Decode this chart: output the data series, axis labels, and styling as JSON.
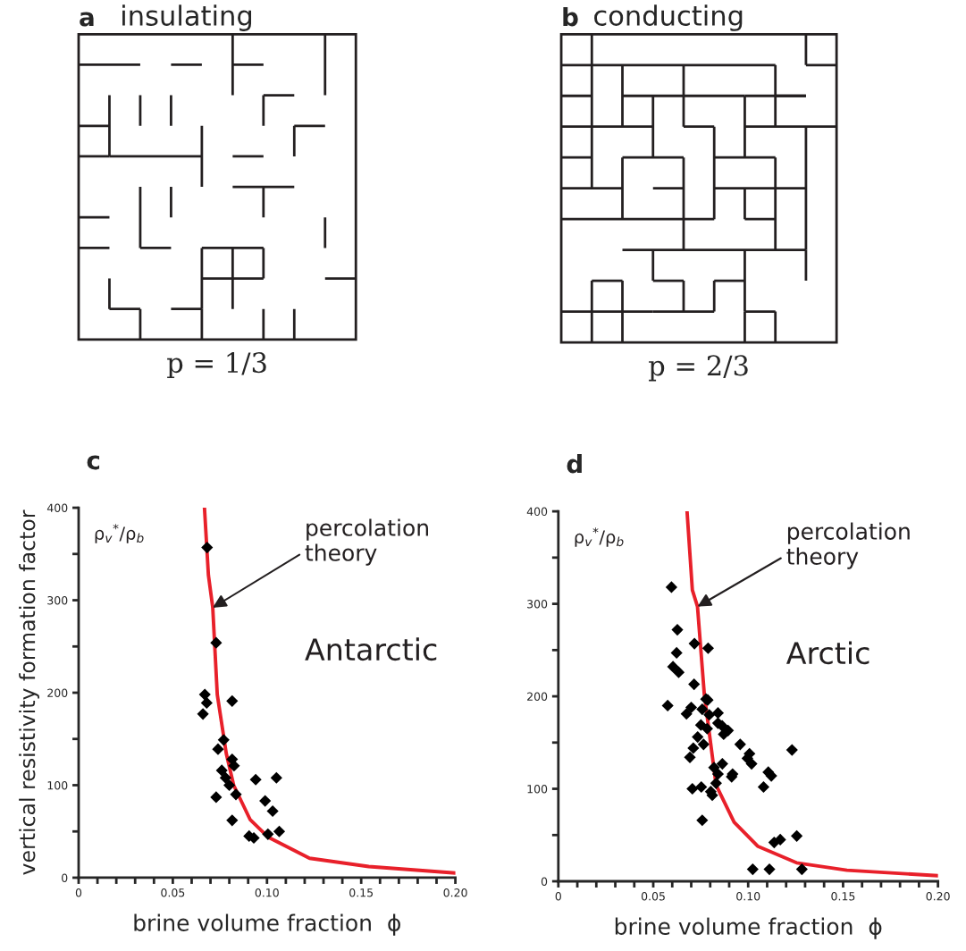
{
  "chart_data": [
    {
      "type": "other",
      "title": "insulating",
      "annotations": [
        "a",
        "p = 1/3"
      ]
    },
    {
      "type": "other",
      "title": "conducting",
      "annotations": [
        "b",
        "p = 2/3"
      ]
    },
    {
      "type": "scatter",
      "ylabel": "vertical resistivity formation factor",
      "xlabel": "brine volume fraction  ϕ",
      "annotations": [
        "c",
        "ρ$_{v}$$^{*}$/ρ$_{b}$",
        "Antarctic",
        {
          "text": "percolation theory",
          "x": 0.0712,
          "y": 292
        }
      ],
      "xlim": [
        0,
        0.2
      ],
      "ylim": [
        0,
        400
      ],
      "xticks": [
        0,
        {
          "value": 0.01,
          "label": null
        },
        {
          "value": 0.02,
          "label": null
        },
        {
          "value": 0.03,
          "label": null
        },
        {
          "value": 0.04,
          "label": null
        },
        0.05,
        {
          "value": 0.06,
          "label": null
        },
        {
          "value": 0.07,
          "label": null
        },
        {
          "value": 0.08,
          "label": null
        },
        {
          "value": 0.09,
          "label": null
        },
        {
          "value": 0.1,
          "label": "0.10"
        },
        {
          "value": 0.11,
          "label": null
        },
        {
          "value": 0.12,
          "label": null
        },
        {
          "value": 0.13,
          "label": null
        },
        {
          "value": 0.14,
          "label": null
        },
        0.15,
        {
          "value": 0.16,
          "label": null
        },
        {
          "value": 0.17,
          "label": null
        },
        {
          "value": 0.18,
          "label": null
        },
        {
          "value": 0.19,
          "label": null
        },
        {
          "value": 0.2,
          "label": "0.20"
        }
      ],
      "yticks": [
        0,
        {
          "value": 50,
          "label": null
        },
        100,
        {
          "value": 150,
          "label": null
        },
        200,
        {
          "value": 250,
          "label": null
        },
        300,
        {
          "value": 350,
          "label": null
        },
        400
      ],
      "grid": false,
      "legend": false,
      "series": [
        {
          "type": "scatter",
          "marker": "diamond",
          "color": "#000000",
          "x": [
            0.0682,
            0.073,
            0.067,
            0.068,
            0.066,
            0.0815,
            0.077,
            0.074,
            0.0815,
            0.0825,
            0.076,
            0.078,
            0.08,
            0.073,
            0.0835,
            0.094,
            0.105,
            0.099,
            0.103,
            0.0815,
            0.0905,
            0.093,
            0.1005,
            0.1065
          ],
          "values": [
            357,
            254,
            198,
            189,
            177,
            191,
            149,
            139,
            128,
            121,
            116,
            108,
            100,
            87,
            90,
            106,
            108,
            83,
            72,
            62,
            45,
            43,
            47,
            50
          ]
        },
        {
          "type": "line",
          "marker": "none",
          "color": "#e8202a",
          "x": [
            0.0668,
            0.0689,
            0.0712,
            0.0736,
            0.0784,
            0.0823,
            0.091,
            0.1005,
            0.1226,
            0.154,
            0.2
          ],
          "values": [
            400,
            327,
            292,
            198,
            134,
            100,
            63,
            44,
            21,
            12,
            5
          ]
        }
      ]
    },
    {
      "type": "scatter",
      "xlabel": "brine volume fraction  ϕ",
      "annotations": [
        "d",
        "ρ$_{v}$$^{*}$/ρ$_{b}$",
        "Arctic",
        {
          "text": "percolation theory",
          "x": 0.0733,
          "y": 297
        }
      ],
      "xlim": [
        0,
        0.2
      ],
      "ylim": [
        0,
        400
      ],
      "xticks": [
        0,
        {
          "value": 0.01,
          "label": null
        },
        {
          "value": 0.02,
          "label": null
        },
        {
          "value": 0.03,
          "label": null
        },
        {
          "value": 0.04,
          "label": null
        },
        0.05,
        {
          "value": 0.06,
          "label": null
        },
        {
          "value": 0.07,
          "label": null
        },
        {
          "value": 0.08,
          "label": null
        },
        {
          "value": 0.09,
          "label": null
        },
        {
          "value": 0.1,
          "label": "0.10"
        },
        {
          "value": 0.11,
          "label": null
        },
        {
          "value": 0.12,
          "label": null
        },
        {
          "value": 0.13,
          "label": null
        },
        {
          "value": 0.14,
          "label": null
        },
        0.15,
        {
          "value": 0.16,
          "label": null
        },
        {
          "value": 0.17,
          "label": null
        },
        {
          "value": 0.18,
          "label": null
        },
        {
          "value": 0.19,
          "label": null
        },
        {
          "value": 0.2,
          "label": "0.20"
        }
      ],
      "yticks": [
        0,
        {
          "value": 50,
          "label": null
        },
        100,
        {
          "value": 150,
          "label": null
        },
        200,
        {
          "value": 250,
          "label": null
        },
        300,
        {
          "value": 350,
          "label": null
        },
        400
      ],
      "grid": false,
      "legend": false,
      "series": [
        {
          "type": "scatter",
          "marker": "diamond",
          "color": "#000000",
          "x": [
            0.0596,
            0.0627,
            0.0717,
            0.0789,
            0.0623,
            0.0604,
            0.0634,
            0.0715,
            0.0778,
            0.0787,
            0.0576,
            0.07,
            0.0758,
            0.0675,
            0.0795,
            0.0841,
            0.0841,
            0.0863,
            0.0751,
            0.0784,
            0.0894,
            0.0871,
            0.0734,
            0.0765,
            0.0958,
            0.0711,
            0.1007,
            0.0996,
            0.0693,
            0.1231,
            0.1018,
            0.0864,
            0.082,
            0.1106,
            0.0841,
            0.0918,
            0.1122,
            0.0913,
            0.0831,
            0.0753,
            0.0706,
            0.1081,
            0.0803,
            0.0811,
            0.0758,
            0.1256,
            0.1169,
            0.1137,
            0.1024,
            0.1112,
            0.1283
          ],
          "values": [
            318,
            272,
            257,
            252,
            247,
            232,
            226,
            213,
            197,
            196,
            190,
            188,
            186,
            181,
            180,
            182,
            171,
            168,
            169,
            165,
            163,
            159,
            156,
            148,
            148,
            144,
            138,
            133,
            134,
            142,
            127,
            127,
            123,
            118,
            116,
            116,
            114,
            113,
            106,
            102,
            100,
            102,
            97,
            93,
            66,
            49,
            45,
            42,
            13,
            13,
            13
          ]
        },
        {
          "type": "line",
          "marker": "none",
          "color": "#e8202a",
          "x": [
            0.0678,
            0.0706,
            0.0733,
            0.0769,
            0.0831,
            0.0926,
            0.105,
            0.1255,
            0.152,
            0.2
          ],
          "values": [
            400,
            315,
            297,
            202,
            104,
            64,
            38,
            20,
            12,
            6
          ]
        }
      ]
    }
  ]
}
